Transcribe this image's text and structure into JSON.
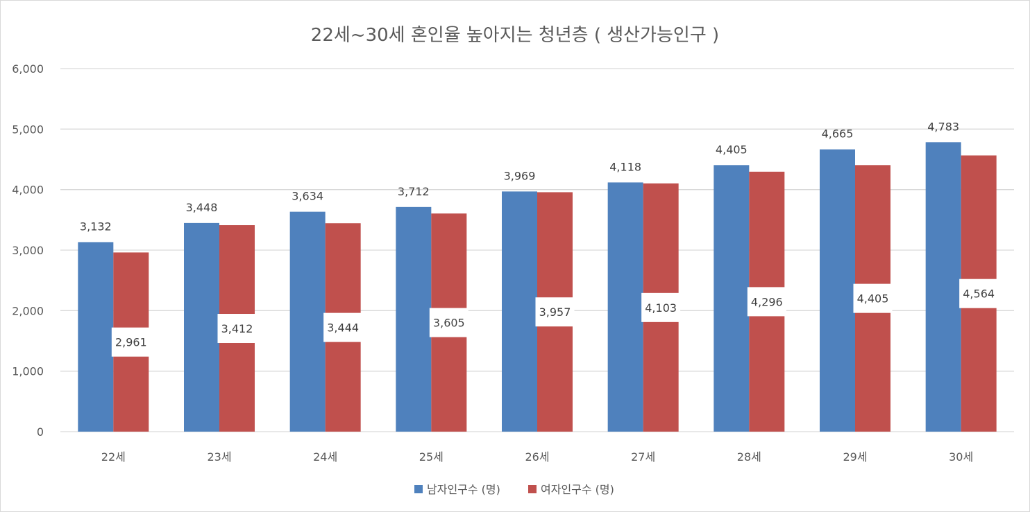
{
  "chart_data": {
    "type": "bar",
    "title": "22세~30세 혼인율 높아지는 청년층 ( 생산가능인구 )",
    "categories": [
      "22세",
      "23세",
      "24세",
      "25세",
      "26세",
      "27세",
      "28세",
      "29세",
      "30세"
    ],
    "series": [
      {
        "name": "남자인구수 (명)",
        "color": "#4f81bd",
        "values": [
          3132,
          3448,
          3634,
          3712,
          3969,
          4118,
          4405,
          4665,
          4783
        ],
        "labels": [
          "3,132",
          "3,448",
          "3,634",
          "3,712",
          "3,969",
          "4,118",
          "4,405",
          "4,665",
          "4,783"
        ],
        "label_position": "outside-end"
      },
      {
        "name": "여자인구수 (명)",
        "color": "#c0504d",
        "values": [
          2961,
          3412,
          3444,
          3605,
          3957,
          4103,
          4296,
          4405,
          4564
        ],
        "labels": [
          "2,961",
          "3,412",
          "3,444",
          "3,605",
          "3,957",
          "4,103",
          "4,296",
          "4,405",
          "4,564"
        ],
        "label_position": "center-boxed"
      }
    ],
    "ylim": [
      0,
      6000
    ],
    "yticks": [
      0,
      1000,
      2000,
      3000,
      4000,
      5000,
      6000
    ],
    "ytick_labels": [
      "0",
      "1,000",
      "2,000",
      "3,000",
      "4,000",
      "5,000",
      "6,000"
    ],
    "xlabel": "",
    "ylabel": "",
    "grid": true,
    "legend_position": "bottom"
  }
}
